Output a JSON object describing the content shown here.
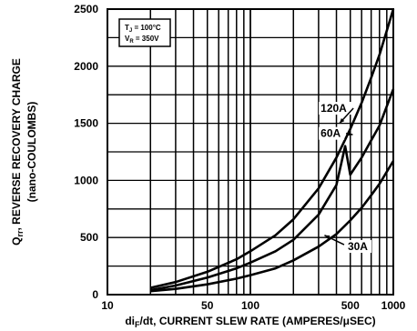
{
  "chart_data": {
    "type": "line",
    "xscale": "log",
    "xlim": [
      10,
      1000
    ],
    "ylim": [
      0,
      2500
    ],
    "grid": true,
    "xlabel": "di F/dt, CURRENT SLEW RATE (AMPERES/μSEC)",
    "xlabel_parts": {
      "pre": "di",
      "sub": "F",
      "post": "/dt, CURRENT SLEW RATE (AMPERES/μSEC)"
    },
    "ylabel_parts": {
      "pre": "Q",
      "sub": "rr",
      "post": ", REVERSE RECOVERY CHARGE"
    },
    "ylabel_line2": "(nano-COULOMBS)",
    "x_tick_labels": [
      "10",
      "50",
      "100",
      "500",
      "1000"
    ],
    "x_tick_values": [
      10,
      50,
      100,
      500,
      1000
    ],
    "y_tick_labels": [
      "0",
      "500",
      "1000",
      "1500",
      "2000",
      "2500"
    ],
    "y_tick_values": [
      0,
      500,
      1000,
      1500,
      2000,
      2500
    ],
    "conditions": {
      "tj_main": "T",
      "tj_sub": "J",
      "tj_value": " = 100°C",
      "vr_main": "V",
      "vr_sub": "R",
      "vr_value": " = 350V"
    },
    "series": [
      {
        "name": "120A",
        "x": [
          20,
          30,
          50,
          80,
          100,
          150,
          200,
          300,
          400,
          500,
          600,
          700,
          800,
          1000
        ],
        "y": [
          60,
          110,
          200,
          310,
          380,
          520,
          660,
          930,
          1200,
          1450,
          1680,
          1900,
          2100,
          2500
        ]
      },
      {
        "name": "60A",
        "x": [
          20,
          30,
          50,
          80,
          100,
          150,
          200,
          300,
          400,
          460,
          500,
          600,
          700,
          800,
          1000
        ],
        "y": [
          40,
          80,
          150,
          230,
          280,
          380,
          480,
          700,
          960,
          1300,
          1050,
          1200,
          1350,
          1480,
          1800
        ]
      },
      {
        "name": "30A",
        "x": [
          20,
          30,
          50,
          80,
          100,
          150,
          200,
          300,
          400,
          500,
          600,
          700,
          800,
          1000
        ],
        "y": [
          30,
          50,
          90,
          140,
          170,
          230,
          300,
          420,
          530,
          650,
          760,
          870,
          970,
          1170
        ]
      }
    ],
    "annotations": [
      {
        "text": "120A",
        "x": 310,
        "y": 1600,
        "arrow_to": [
          420,
          1500
        ]
      },
      {
        "text": "60A",
        "x": 310,
        "y": 1380,
        "arrow_to": [
          520,
          1400
        ]
      },
      {
        "text": "30A",
        "x": 480,
        "y": 390,
        "arrow_from": [
          330,
          520
        ]
      }
    ]
  }
}
